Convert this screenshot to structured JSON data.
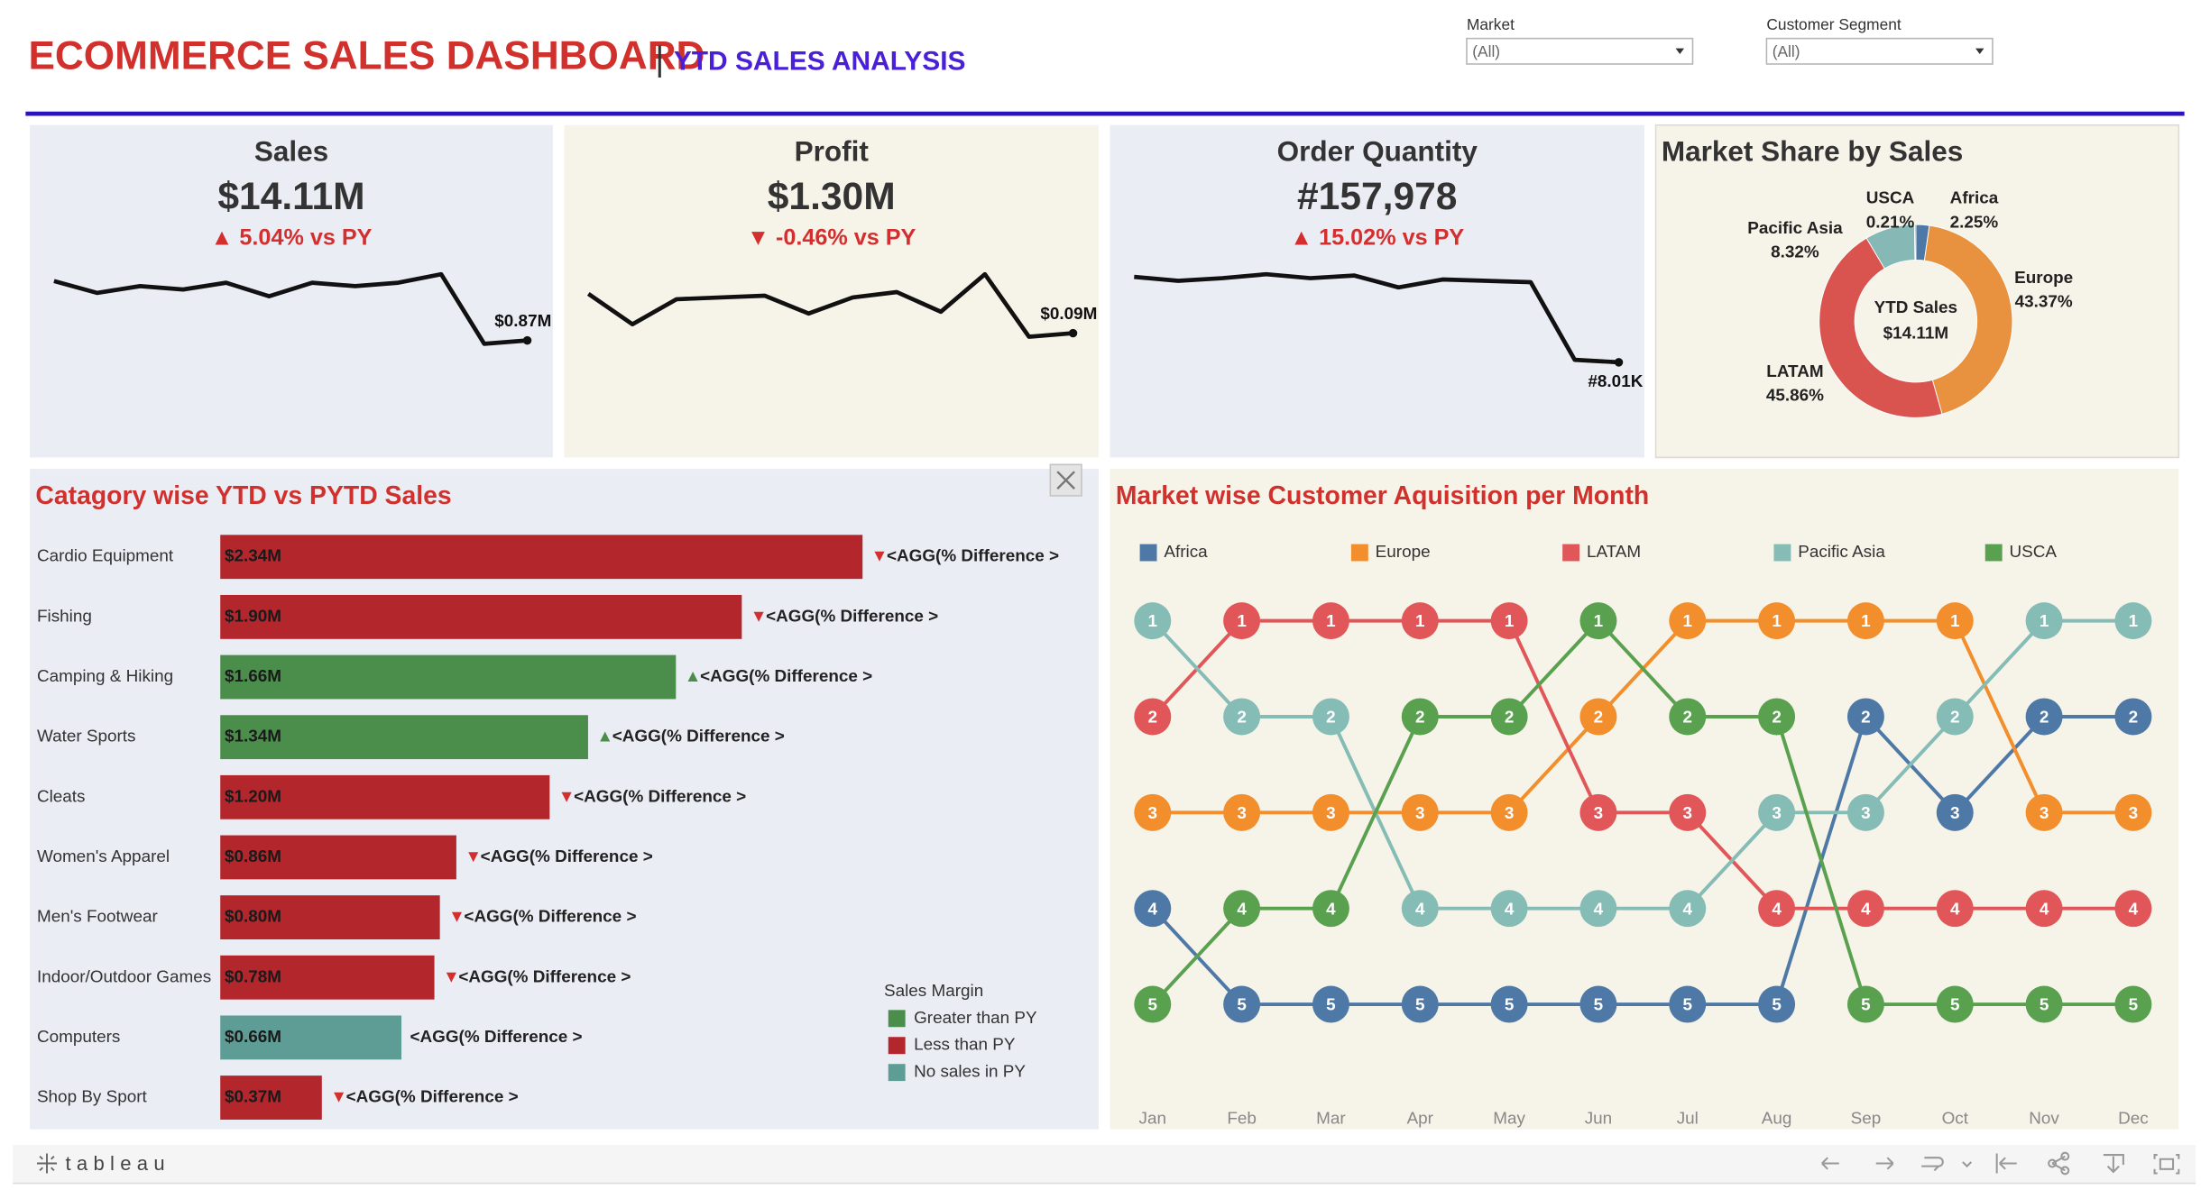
{
  "header": {
    "title": "ECOMMERCE SALES DASHBOARD",
    "separator": "|",
    "subtitle": "YTD SALES ANALYSIS"
  },
  "filters": [
    {
      "label": "Market",
      "value": "(All)"
    },
    {
      "label": "Customer Segment",
      "value": "(All)"
    }
  ],
  "chart_data": [
    {
      "type": "line",
      "title": "Sales",
      "kpi": "$14.11M",
      "change": "▲ 5.04% vs PY",
      "change_color": "#d32f2f",
      "background": "#ebedf4",
      "color": "#111111",
      "values": [
        1.22,
        1.15,
        1.19,
        1.17,
        1.21,
        1.13,
        1.21,
        1.19,
        1.21,
        1.26,
        0.85,
        0.87
      ],
      "value_labels": [
        null,
        null,
        null,
        null,
        null,
        null,
        null,
        null,
        null,
        null,
        null,
        "$0.87M"
      ]
    },
    {
      "type": "line",
      "title": "Profit",
      "kpi": "$1.30M",
      "change": "▼ -0.46% vs PY",
      "change_color": "#d32f2f",
      "background": "#f6f3e8",
      "color": "#111111",
      "values": [
        0.112,
        0.095,
        0.109,
        0.11,
        0.111,
        0.101,
        0.11,
        0.113,
        0.102,
        0.123,
        0.088,
        0.09
      ],
      "value_labels": [
        null,
        null,
        null,
        null,
        null,
        null,
        null,
        null,
        null,
        null,
        null,
        "$0.09M"
      ]
    },
    {
      "type": "line",
      "title": "Order Quantity",
      "kpi": "#157,978",
      "change": "▲ 15.02% vs PY",
      "change_color": "#d32f2f",
      "background": "#ebedf4",
      "color": "#111111",
      "values": [
        14.5,
        14.2,
        14.4,
        14.7,
        14.4,
        14.6,
        13.7,
        14.3,
        14.2,
        14.1,
        8.2,
        8.01
      ],
      "value_labels": [
        null,
        null,
        null,
        null,
        null,
        null,
        null,
        null,
        null,
        null,
        null,
        "#8.01K"
      ]
    },
    {
      "type": "pie",
      "title": "Market Share by Sales",
      "background": "#f6f3e8",
      "center_label": "YTD Sales",
      "center_value": "$14.11M",
      "categories": [
        "Africa",
        "Europe",
        "LATAM",
        "Pacific Asia",
        "USCA"
      ],
      "values": [
        2.25,
        43.37,
        45.86,
        8.32,
        0.21
      ],
      "value_labels": [
        "2.25%",
        "43.37%",
        "45.86%",
        "8.32%",
        "0.21%"
      ],
      "colors": [
        "#4e79a7",
        "#e8923f",
        "#d9534f",
        "#86b9b5",
        "#59a14f"
      ]
    },
    {
      "type": "bar",
      "orientation": "horizontal",
      "title": "Catagory wise YTD vs PYTD Sales",
      "background": "#ebedf4",
      "categories": [
        "Cardio Equipment",
        "Fishing",
        "Camping & Hiking",
        "Water Sports",
        "Cleats",
        "Women's Apparel",
        "Men's Footwear",
        "Indoor/Outdoor Games",
        "Computers",
        "Shop By Sport"
      ],
      "values": [
        2.34,
        1.9,
        1.66,
        1.34,
        1.2,
        0.86,
        0.8,
        0.78,
        0.66,
        0.37
      ],
      "value_labels": [
        "$2.34M",
        "$1.90M",
        "$1.66M",
        "$1.34M",
        "$1.20M",
        "$0.86M",
        "$0.80M",
        "$0.78M",
        "$0.66M",
        "$0.37M"
      ],
      "colors": [
        "#b3262c",
        "#b3262c",
        "#4b8e4b",
        "#4b8e4b",
        "#b3262c",
        "#b3262c",
        "#b3262c",
        "#b3262c",
        "#5e9c96",
        "#b3262c"
      ],
      "indicators": [
        "▼",
        "▼",
        "▲",
        "▲",
        "▼",
        "▼",
        "▼",
        "▼",
        null,
        "▼"
      ],
      "indicator_colors": [
        "#d32f2f",
        "#d32f2f",
        "#4b8e4b",
        "#4b8e4b",
        "#d32f2f",
        "#d32f2f",
        "#d32f2f",
        "#d32f2f",
        null,
        "#d32f2f"
      ],
      "annotation": "<AGG(% Difference >",
      "xlim": [
        0,
        3.2
      ],
      "legend": {
        "title": "Sales Margin",
        "items": [
          {
            "name": "Greater than PY",
            "color": "#4b8e4b"
          },
          {
            "name": "Less than PY",
            "color": "#b3262c"
          },
          {
            "name": "No sales in PY",
            "color": "#5e9c96"
          }
        ]
      }
    },
    {
      "type": "bump",
      "title": "Market wise Customer Aquisition per Month",
      "background": "#f6f3e8",
      "legend": "top",
      "categories": [
        "Jan",
        "Feb",
        "Mar",
        "Apr",
        "May",
        "Jun",
        "Jul",
        "Aug",
        "Sep",
        "Oct",
        "Nov",
        "Dec"
      ],
      "ylim": [
        5,
        1
      ],
      "series": [
        {
          "name": "Africa",
          "color": "#4e79a7",
          "values": [
            4,
            5,
            5,
            5,
            5,
            5,
            5,
            5,
            2,
            3,
            2,
            2
          ]
        },
        {
          "name": "Europe",
          "color": "#f28e2b",
          "values": [
            3,
            3,
            3,
            3,
            3,
            2,
            1,
            1,
            1,
            1,
            3,
            3
          ]
        },
        {
          "name": "LATAM",
          "color": "#e15759",
          "values": [
            2,
            1,
            1,
            1,
            1,
            3,
            3,
            4,
            4,
            4,
            4,
            4
          ]
        },
        {
          "name": "Pacific Asia",
          "color": "#86bcb6",
          "values": [
            1,
            2,
            2,
            4,
            4,
            4,
            4,
            3,
            3,
            2,
            1,
            1
          ]
        },
        {
          "name": "USCA",
          "color": "#59a14f",
          "values": [
            5,
            4,
            4,
            2,
            2,
            1,
            2,
            2,
            5,
            5,
            5,
            5
          ]
        }
      ]
    }
  ],
  "footer": {
    "brand": "tableau"
  }
}
